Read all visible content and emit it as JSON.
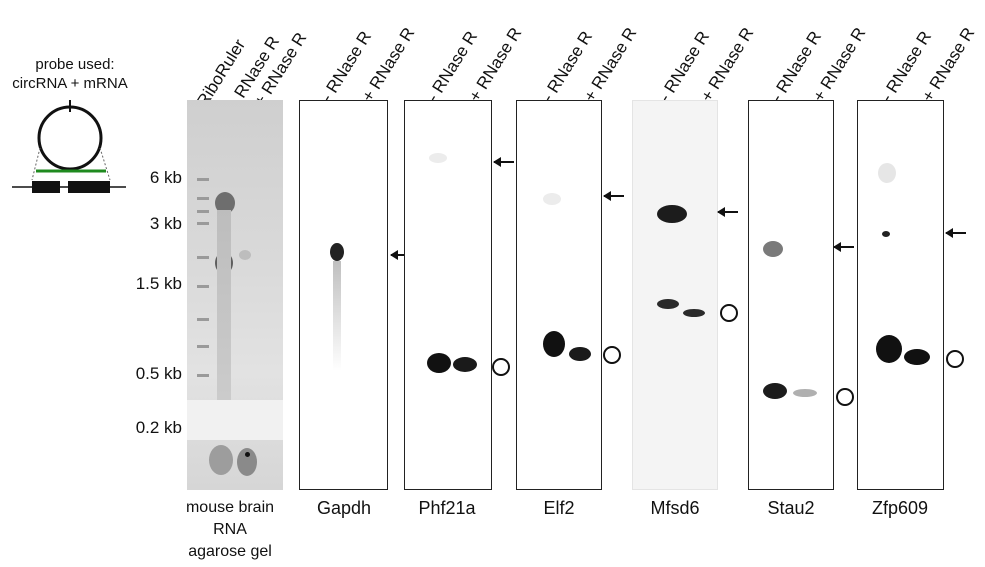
{
  "probe": {
    "title_line1": "probe used:",
    "title_line2": "circRNA + mRNA"
  },
  "gel": {
    "lane_labels": [
      "RiboRuler",
      "- RNase R",
      "+ RNase R"
    ],
    "size_markers": [
      "6 kb",
      "3 kb",
      "1.5 kb",
      "0.5 kb",
      "0.2 kb"
    ],
    "caption_line1": "mouse brain",
    "caption_line2": "RNA",
    "caption_line3": "agarose gel"
  },
  "blots": [
    {
      "gene": "Gapdh",
      "minus_label": "- RNase R",
      "plus_label": "+ RNase R"
    },
    {
      "gene": "Phf21a",
      "minus_label": "- RNase R",
      "plus_label": "+ RNase R"
    },
    {
      "gene": "Elf2",
      "minus_label": "- RNase R",
      "plus_label": "+ RNase R"
    },
    {
      "gene": "Mfsd6",
      "minus_label": "- RNase R",
      "plus_label": "+ RNase R"
    },
    {
      "gene": "Stau2",
      "minus_label": "- RNase R",
      "plus_label": "+ RNase R"
    },
    {
      "gene": "Zfp609",
      "minus_label": "- RNase R",
      "plus_label": "+ RNase R"
    }
  ],
  "legend": {
    "arrow_meaning": "linear mRNA",
    "circle_meaning": "circRNA"
  }
}
